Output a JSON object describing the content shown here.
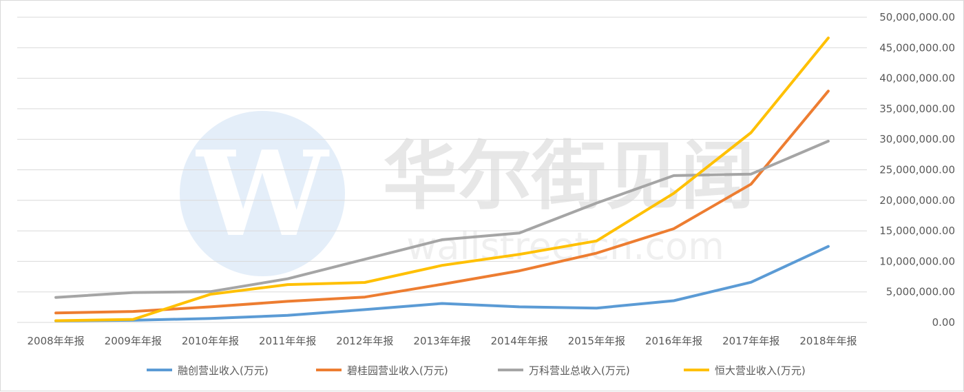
{
  "chart_data": {
    "type": "line",
    "title": "",
    "xlabel": "",
    "ylabel": "",
    "categories": [
      "2008年年报",
      "2009年年报",
      "2010年年报",
      "2011年年报",
      "2012年年报",
      "2013年年报",
      "2014年年报",
      "2015年年报",
      "2016年年报",
      "2017年年报",
      "2018年年报"
    ],
    "ylim": [
      0,
      50000000
    ],
    "y_ticks": [
      0,
      5000000,
      10000000,
      15000000,
      20000000,
      25000000,
      30000000,
      35000000,
      40000000,
      45000000,
      50000000
    ],
    "y_tick_labels": [
      "0.00",
      "5,000,000.00",
      "10,000,000.00",
      "15,000,000.00",
      "20,000,000.00",
      "25,000,000.00",
      "30,000,000.00",
      "35,000,000.00",
      "40,000,000.00",
      "45,000,000.00",
      "50,000,000.00"
    ],
    "y_axis_side": "right",
    "grid": true,
    "legend_position": "bottom",
    "series": [
      {
        "name": "融创营业收入(万元)",
        "color": "#5b9bd5",
        "values": [
          250000,
          350000,
          650000,
          1150000,
          2100000,
          3100000,
          2550000,
          2350000,
          3550000,
          6580000,
          12450000
        ]
      },
      {
        "name": "碧桂园营业收入(万元)",
        "color": "#ed7d31",
        "values": [
          1550000,
          1800000,
          2550000,
          3450000,
          4150000,
          6250000,
          8450000,
          11350000,
          15350000,
          22650000,
          37900000
        ]
      },
      {
        "name": "万科营业总收入(万元)",
        "color": "#a5a5a5",
        "values": [
          4100000,
          4900000,
          5050000,
          7150000,
          10350000,
          13550000,
          14650000,
          19550000,
          24050000,
          24300000,
          29700000
        ]
      },
      {
        "name": "恒大营业收入(万元)",
        "color": "#ffc000",
        "values": [
          280000,
          500000,
          4600000,
          6200000,
          6550000,
          9350000,
          11150000,
          13350000,
          21150000,
          31100000,
          46600000
        ]
      }
    ]
  },
  "watermark": {
    "text": "华尔街见闻",
    "url_text": "wallstreetcn.com",
    "logo_letter": "W"
  }
}
